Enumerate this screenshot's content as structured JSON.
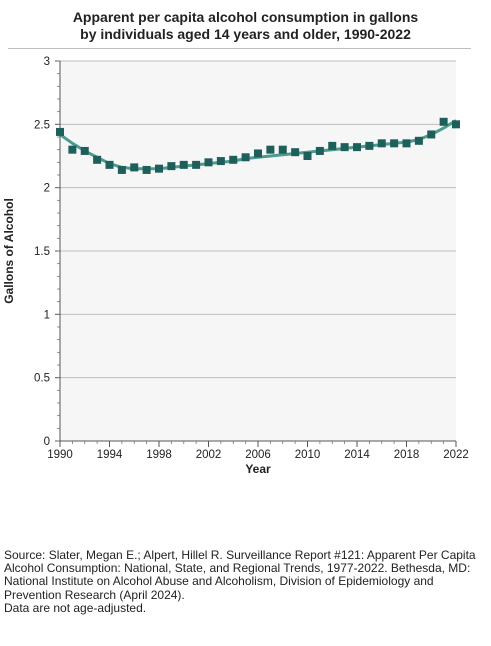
{
  "title_line1": "Apparent per capita alcohol consumption in gallons",
  "title_line2": "by individuals aged 14 years and older, 1990-2022",
  "source": {
    "line1": "Source: Slater, Megan E.; Alpert, Hillel R. Surveillance Report #121: Apparent Per Capita",
    "line2": "Alcohol Consumption: National, State, and Regional Trends, 1977-2022. Bethesda, MD:",
    "line3": "National Institute on Alcohol Abuse and Alcoholism, Division of Epidemiology and",
    "line4": "Prevention Research (April 2024).",
    "line5": "Data are not age-adjusted."
  },
  "chart_data": {
    "type": "scatter",
    "title": "Apparent per capita alcohol consumption in gallons by individuals aged 14 years and older, 1990-2022",
    "xlabel": "Year",
    "ylabel": "Gallons of Alcohol",
    "xlim": [
      1990,
      2022
    ],
    "ylim": [
      0,
      3
    ],
    "xticks": [
      "1990",
      "1994",
      "1998",
      "2002",
      "2006",
      "2010",
      "2014",
      "2018",
      "2022"
    ],
    "yticks": [
      "0",
      "0.5",
      "1",
      "1.5",
      "2",
      "2.5",
      "3"
    ],
    "grid": true,
    "marker_color": "#1f5f5b",
    "trend_color": "#2e8b7a",
    "plot_background": "#f6f6f6",
    "x": [
      1990,
      1991,
      1992,
      1993,
      1994,
      1995,
      1996,
      1997,
      1998,
      1999,
      2000,
      2001,
      2002,
      2003,
      2004,
      2005,
      2006,
      2007,
      2008,
      2009,
      2010,
      2011,
      2012,
      2013,
      2014,
      2015,
      2016,
      2017,
      2018,
      2019,
      2020,
      2021,
      2022
    ],
    "y": [
      2.44,
      2.3,
      2.29,
      2.22,
      2.18,
      2.14,
      2.16,
      2.14,
      2.15,
      2.17,
      2.18,
      2.18,
      2.2,
      2.21,
      2.22,
      2.24,
      2.27,
      2.3,
      2.3,
      2.28,
      2.25,
      2.29,
      2.33,
      2.32,
      2.32,
      2.33,
      2.35,
      2.35,
      2.35,
      2.37,
      2.42,
      2.52,
      2.5
    ],
    "trend_y": [
      2.42,
      2.35,
      2.29,
      2.24,
      2.19,
      2.16,
      2.15,
      2.15,
      2.15,
      2.16,
      2.17,
      2.18,
      2.19,
      2.2,
      2.21,
      2.23,
      2.24,
      2.25,
      2.26,
      2.27,
      2.28,
      2.29,
      2.3,
      2.31,
      2.32,
      2.33,
      2.34,
      2.35,
      2.36,
      2.38,
      2.42,
      2.47,
      2.53
    ]
  }
}
